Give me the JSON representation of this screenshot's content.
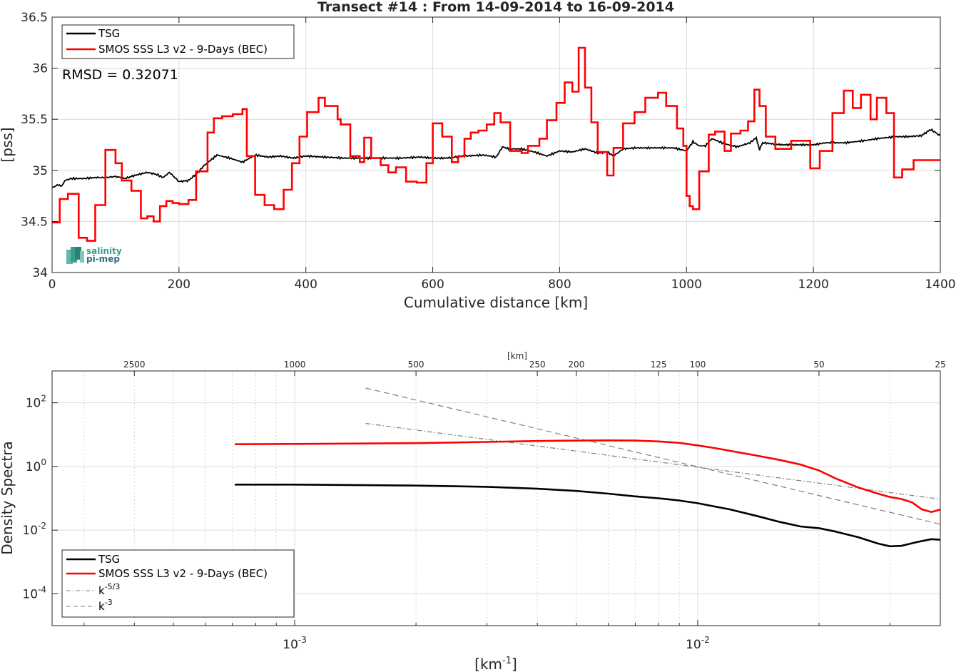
{
  "figure_title": "Transect #14 : From 14-09-2014 to 16-09-2014",
  "logo": {
    "line1": "salinity",
    "line2": "pi-mep"
  },
  "rmsd_label": "RMSD = 0.32071",
  "colors": {
    "tsg": "#000000",
    "smos": "#ff0000",
    "ref": "#808080"
  },
  "chart_data": [
    {
      "type": "line",
      "title": "Transect #14 : From 14-09-2014 to 16-09-2014",
      "xlabel": "Cumulative distance [km]",
      "ylabel": "[pss]",
      "xlim": [
        0,
        1400
      ],
      "ylim": [
        34,
        36.5
      ],
      "xticks": [
        0,
        200,
        400,
        600,
        800,
        1000,
        1200,
        1400
      ],
      "xtick_labels": [
        "0",
        "200",
        "400",
        "600",
        "800",
        "1000",
        "1200",
        "1400"
      ],
      "yticks": [
        34,
        34.5,
        35,
        35.5,
        36,
        36.5
      ],
      "ytick_labels": [
        "34",
        "34.5",
        "35",
        "35.5",
        "36",
        "36.5"
      ],
      "grid": true,
      "legend_position": "top-left",
      "legend": [
        "TSG",
        "SMOS SSS L3 v2 - 9-Days (BEC)"
      ],
      "series": [
        {
          "name": "TSG",
          "x": [
            0,
            10,
            15,
            20,
            30,
            50,
            70,
            85,
            100,
            115,
            130,
            150,
            165,
            175,
            185,
            200,
            215,
            230,
            240,
            250,
            260,
            280,
            300,
            320,
            340,
            360,
            380,
            400,
            430,
            460,
            490,
            520,
            550,
            580,
            600,
            620,
            650,
            680,
            700,
            710,
            720,
            740,
            760,
            780,
            800,
            820,
            840,
            860,
            875,
            885,
            900,
            920,
            950,
            980,
            1000,
            1010,
            1020,
            1030,
            1040,
            1060,
            1080,
            1100,
            1110,
            1115,
            1120,
            1150,
            1180,
            1200,
            1220,
            1250,
            1280,
            1300,
            1330,
            1350,
            1370,
            1385,
            1395,
            1400
          ],
          "y": [
            34.83,
            34.86,
            34.84,
            34.9,
            34.92,
            34.92,
            34.93,
            34.93,
            34.94,
            34.92,
            34.95,
            34.98,
            34.96,
            34.93,
            34.98,
            34.89,
            34.9,
            34.98,
            35.05,
            35.1,
            35.15,
            35.12,
            35.08,
            35.15,
            35.13,
            35.14,
            35.12,
            35.14,
            35.13,
            35.12,
            35.12,
            35.12,
            35.12,
            35.13,
            35.12,
            35.12,
            35.14,
            35.15,
            35.13,
            35.23,
            35.21,
            35.21,
            35.18,
            35.14,
            35.19,
            35.18,
            35.21,
            35.17,
            35.18,
            35.14,
            35.21,
            35.22,
            35.22,
            35.22,
            35.19,
            35.28,
            35.24,
            35.24,
            35.31,
            35.26,
            35.23,
            35.27,
            35.32,
            35.2,
            35.27,
            35.25,
            35.25,
            35.25,
            35.27,
            35.27,
            35.29,
            35.31,
            35.33,
            35.33,
            35.34,
            35.4,
            35.36,
            35.34
          ]
        },
        {
          "name": "SMOS SSS L3 v2 - 9-Days (BEC)",
          "x": [
            0,
            12,
            25,
            42,
            55,
            68,
            84,
            100,
            110,
            125,
            140,
            150,
            160,
            170,
            180,
            190,
            200,
            215,
            227,
            245,
            255,
            268,
            285,
            300,
            307,
            320,
            335,
            350,
            365,
            378,
            390,
            402,
            420,
            430,
            450,
            455,
            470,
            485,
            492,
            503,
            518,
            530,
            542,
            558,
            575,
            590,
            600,
            615,
            630,
            640,
            650,
            660,
            672,
            685,
            697,
            707,
            722,
            740,
            750,
            768,
            780,
            795,
            808,
            820,
            830,
            840,
            850,
            860,
            875,
            885,
            900,
            918,
            935,
            955,
            968,
            985,
            995,
            1000,
            1005,
            1010,
            1020,
            1035,
            1045,
            1060,
            1070,
            1085,
            1097,
            1107,
            1115,
            1125,
            1140,
            1165,
            1180,
            1195,
            1210,
            1230,
            1248,
            1262,
            1275,
            1290,
            1300,
            1315,
            1327,
            1340,
            1358,
            1372,
            1385,
            1400
          ],
          "y": [
            34.49,
            34.72,
            34.77,
            34.34,
            34.31,
            34.66,
            35.2,
            35.07,
            34.9,
            34.8,
            34.53,
            34.55,
            34.5,
            34.65,
            34.7,
            34.68,
            34.67,
            34.71,
            34.99,
            35.37,
            35.51,
            35.53,
            35.55,
            35.6,
            35.14,
            34.76,
            34.66,
            34.62,
            34.81,
            35.07,
            35.33,
            35.57,
            35.71,
            35.63,
            35.5,
            35.45,
            35.14,
            35.08,
            35.32,
            35.12,
            35.05,
            34.98,
            35.03,
            34.89,
            34.88,
            35.07,
            35.46,
            35.33,
            35.08,
            35.14,
            35.31,
            35.37,
            35.39,
            35.45,
            35.56,
            35.47,
            35.19,
            35.17,
            35.24,
            35.31,
            35.49,
            35.66,
            35.86,
            35.77,
            36.2,
            35.81,
            35.47,
            35.18,
            34.95,
            35.22,
            35.46,
            35.57,
            35.71,
            35.76,
            35.63,
            35.41,
            35.24,
            34.75,
            34.65,
            34.62,
            34.99,
            35.35,
            35.38,
            35.19,
            35.36,
            35.39,
            35.48,
            35.79,
            35.63,
            35.33,
            35.21,
            35.29,
            35.29,
            35.02,
            35.19,
            35.56,
            35.78,
            35.61,
            35.74,
            35.5,
            35.71,
            35.56,
            34.93,
            35.01,
            35.1,
            35.1,
            35.1,
            35.1
          ]
        }
      ]
    },
    {
      "type": "line",
      "xlabel": "[km-1]",
      "xlabel_main": "[km",
      "xlabel_sup": "-1",
      "xlabel_end": "]",
      "ylabel": "Density Spectra",
      "x_scale": "log",
      "y_scale": "log",
      "xlim": [
        0.00025,
        0.04
      ],
      "ylim": [
        1e-05,
        1000
      ],
      "grid": true,
      "x_major_ticks": [
        0.001,
        0.01
      ],
      "x_major_tick_labels": [
        {
          "base": "10",
          "exp": "-3"
        },
        {
          "base": "10",
          "exp": "-2"
        }
      ],
      "y_ticks": [
        0.0001,
        0.01,
        1,
        100
      ],
      "y_tick_labels": [
        {
          "base": "10",
          "exp": "-4"
        },
        {
          "base": "10",
          "exp": "-2"
        },
        {
          "base": "10",
          "exp": "0"
        },
        {
          "base": "10",
          "exp": "2"
        }
      ],
      "top_axis_label": "[km]",
      "top_axis_ticks": [
        2500,
        1000,
        500,
        250,
        200,
        125,
        100,
        50,
        25
      ],
      "top_axis_tick_labels": [
        "2500",
        "1000",
        "500",
        "250",
        "200",
        "125",
        "100",
        "50",
        "25"
      ],
      "legend_position": "bottom-left",
      "legend": [
        {
          "label": "TSG"
        },
        {
          "label": "SMOS SSS L3 v2 - 9-Days (BEC)"
        },
        {
          "label": "k",
          "sup": "-5/3"
        },
        {
          "label": "k",
          "sup": "-3"
        }
      ],
      "series": [
        {
          "name": "TSG",
          "x": [
            0.00071,
            0.001,
            0.002,
            0.003,
            0.004,
            0.005,
            0.006,
            0.007,
            0.008,
            0.009,
            0.01,
            0.012,
            0.014,
            0.016,
            0.018,
            0.02,
            0.022,
            0.025,
            0.028,
            0.03,
            0.032,
            0.035,
            0.038,
            0.04
          ],
          "y": [
            0.27,
            0.27,
            0.25,
            0.23,
            0.2,
            0.17,
            0.14,
            0.115,
            0.1,
            0.085,
            0.07,
            0.045,
            0.028,
            0.018,
            0.013,
            0.0115,
            0.009,
            0.006,
            0.0038,
            0.0031,
            0.0032,
            0.0042,
            0.0052,
            0.005
          ]
        },
        {
          "name": "SMOS SSS L3 v2 - 9-Days (BEC)",
          "x": [
            0.00071,
            0.001,
            0.002,
            0.003,
            0.004,
            0.005,
            0.006,
            0.007,
            0.008,
            0.009,
            0.01,
            0.011,
            0.012,
            0.014,
            0.016,
            0.018,
            0.02,
            0.022,
            0.025,
            0.028,
            0.03,
            0.032,
            0.034,
            0.036,
            0.038,
            0.04
          ],
          "y": [
            5.0,
            5.1,
            5.4,
            5.9,
            6.3,
            6.5,
            6.6,
            6.5,
            6.1,
            5.5,
            4.6,
            3.8,
            3.1,
            2.2,
            1.6,
            1.15,
            0.75,
            0.42,
            0.22,
            0.14,
            0.11,
            0.095,
            0.075,
            0.045,
            0.037,
            0.044
          ]
        },
        {
          "name": "k-5/3",
          "x": [
            0.0015,
            0.04
          ],
          "y": [
            22.5,
            0.094
          ]
        },
        {
          "name": "k-3",
          "x": [
            0.0015,
            0.04
          ],
          "y": [
            290,
            0.0153
          ]
        }
      ]
    }
  ]
}
